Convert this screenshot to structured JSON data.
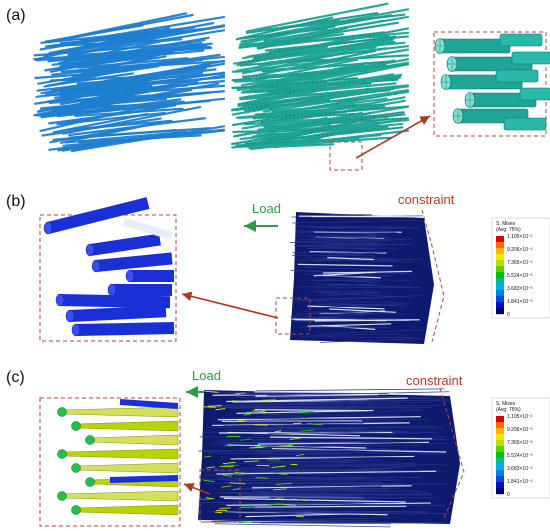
{
  "panels": [
    {
      "label": "(a)"
    },
    {
      "label": "(b)",
      "load": "Load",
      "constraint": "constraint"
    },
    {
      "label": "(c)",
      "load": "Load",
      "constraint": "constraint"
    }
  ],
  "legend": {
    "title_line1": "S, Mises",
    "title_line2": "(Avg: 75%)",
    "ticks": [
      "1.105×10⁻²",
      "9.206×10⁻³",
      "7.365×10⁻³",
      "5.524×10⁻³",
      "3.683×10⁻³",
      "1.841×10⁻³",
      "0"
    ],
    "colors": [
      "#d90000",
      "#ff6a00",
      "#ffb300",
      "#f0ea00",
      "#b6e000",
      "#5ed000",
      "#00c000",
      "#00c08a",
      "#00b0e0",
      "#007de8",
      "#0048e0",
      "#0010c8",
      "#000070"
    ]
  },
  "colors": {
    "fiber_blue": "#1e7fd0",
    "fiber_teal": "#1fa596",
    "stress_dark": "#0d1a6e",
    "zoom_blue": "#1a2fd6",
    "arrow": "#a83a22",
    "load_green": "#2e9a4a",
    "constraint_red": "#c0392b"
  }
}
